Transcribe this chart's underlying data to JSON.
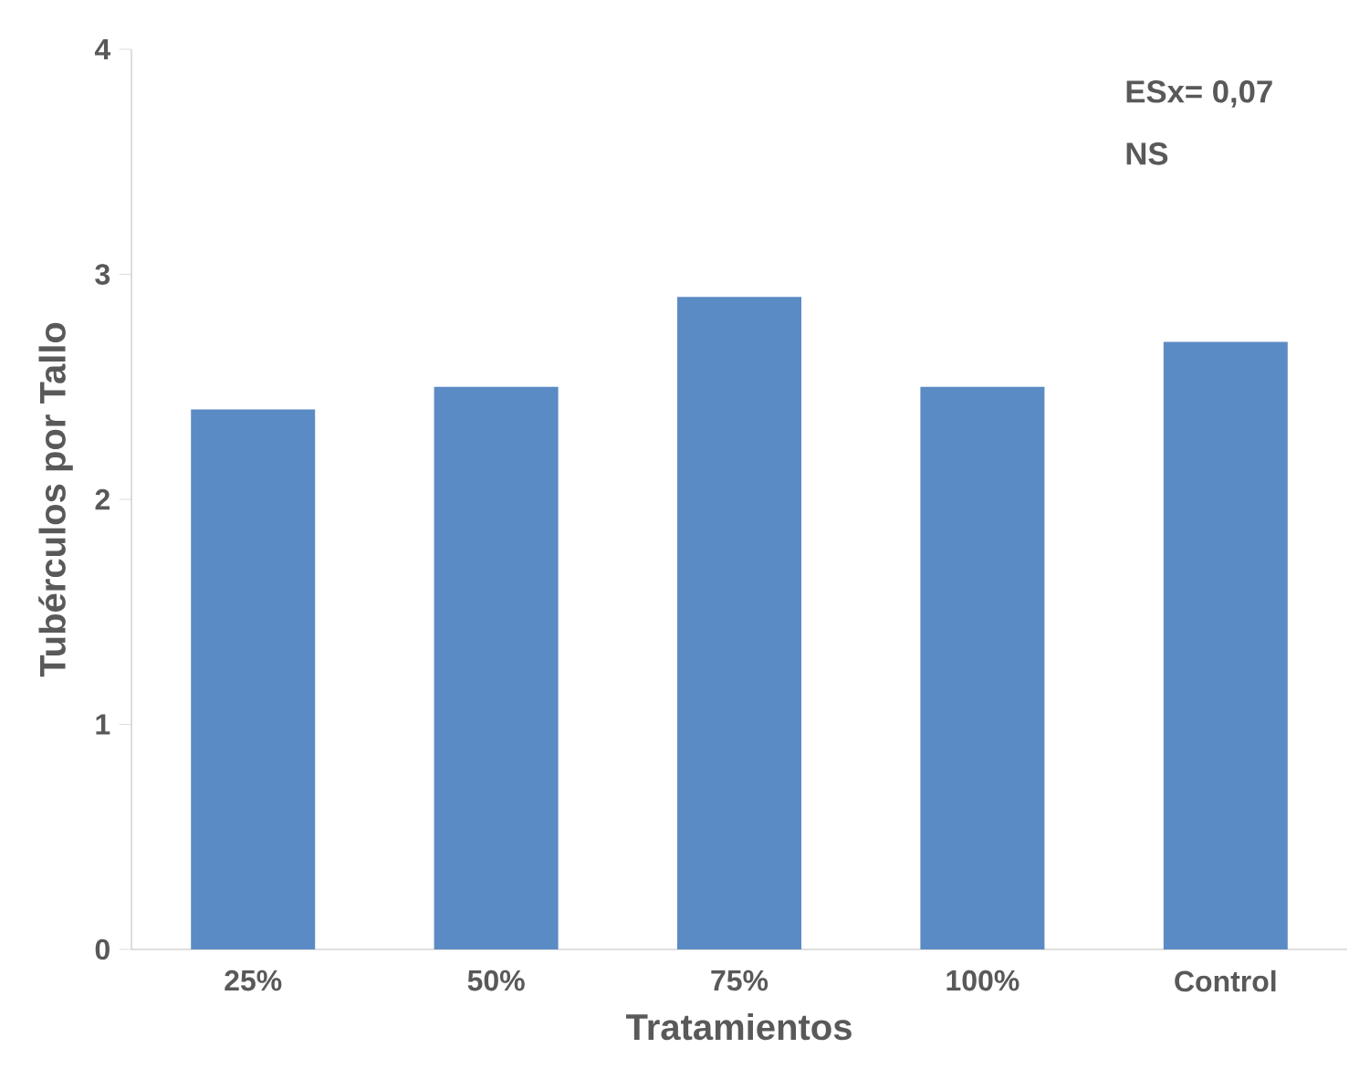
{
  "chart_data": {
    "type": "bar",
    "xlabel": "Tratamientos",
    "ylabel": "Tubérculos por Tallo",
    "categories": [
      "25%",
      "50%",
      "75%",
      "100%",
      "Control"
    ],
    "values": [
      2.4,
      2.5,
      2.9,
      2.5,
      2.7
    ],
    "color": "#5b8bc5",
    "ylim": [
      0,
      4
    ],
    "yticks": [
      0,
      1,
      2,
      3,
      4
    ],
    "annotations": [
      "ESx= 0,07",
      "NS"
    ],
    "grid": false
  }
}
